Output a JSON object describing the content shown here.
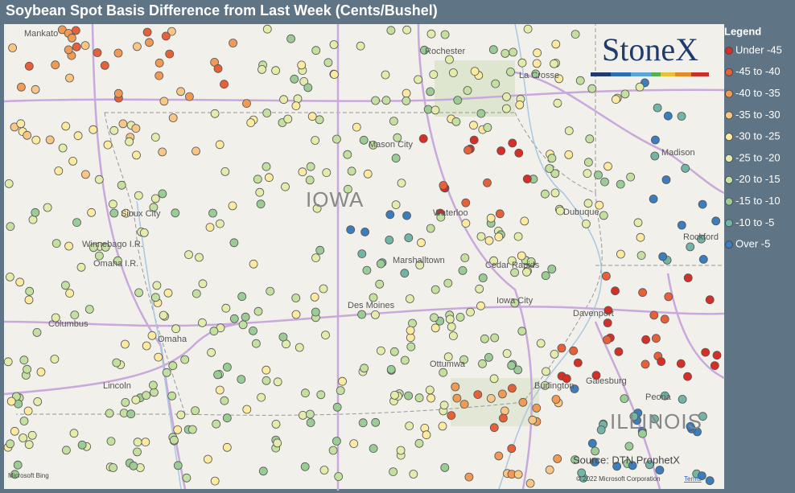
{
  "header": {
    "title": "Soybean Spot Basis Difference from Last Week (Cents/Bushel)"
  },
  "legend": {
    "title": "Legend",
    "items": [
      {
        "label": "Under -45",
        "color": "#d62f27"
      },
      {
        "label": "-45 to -40",
        "color": "#e6603a"
      },
      {
        "label": "-40 to -35",
        "color": "#f09a55"
      },
      {
        "label": "-35 to -30",
        "color": "#f8c685"
      },
      {
        "label": "-30 to -25",
        "color": "#fbeaa0"
      },
      {
        "label": "-25 to -20",
        "color": "#e4ecac"
      },
      {
        "label": "-20 to -15",
        "color": "#c4e0a0"
      },
      {
        "label": "-15 to -10",
        "color": "#9ccc96"
      },
      {
        "label": "-10 to -5",
        "color": "#72b4a6"
      },
      {
        "label": "Over -5",
        "color": "#3b7dbd"
      }
    ]
  },
  "logo": "StoneX",
  "places": [
    "Rochester",
    "La Crosse",
    "Madison",
    "Mason City",
    "IOWA",
    "Waterloo",
    "Dubuque",
    "Sioux City",
    "Winnebago I.R.",
    "Omaha I.R.",
    "Marshalltown",
    "Cedar Rapids",
    "Rockford",
    "Iowa City",
    "Des Moines",
    "Davenport",
    "Columbus",
    "Omaha",
    "Lincoln",
    "Ottumwa",
    "Burlington",
    "Galesburg",
    "Peoria",
    "ILLINOIS",
    "Mankato"
  ],
  "source": "Source: DTN ProphetX",
  "attribution": {
    "provider": "Microsoft Bing",
    "copyright": "© 2022 Microsoft Corporation",
    "terms": "Terms"
  }
}
